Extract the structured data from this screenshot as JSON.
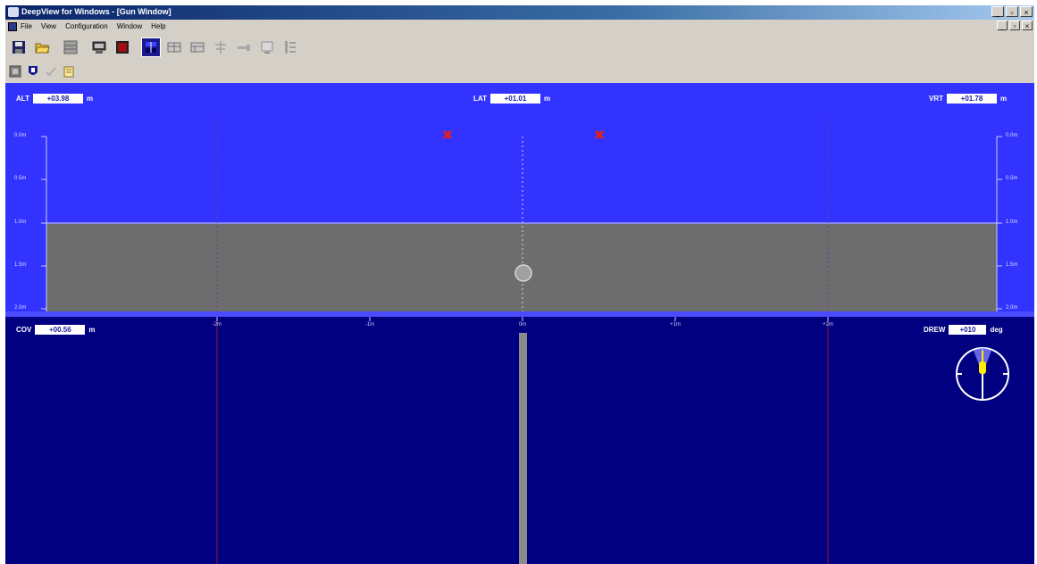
{
  "window": {
    "title": "DeepView for Windows - [Gun Window]",
    "controls": [
      "_",
      "▫",
      "×"
    ]
  },
  "menu": {
    "items": [
      "File",
      "View",
      "Configuration",
      "Window",
      "Help"
    ]
  },
  "toolbar": {
    "row1_icons": [
      "save-icon",
      "open-folder-icon",
      "grid-icon",
      "monitor-icon",
      "record-icon",
      "sonar-view-icon",
      "panel-a-icon",
      "panel-b-icon",
      "antenna-icon",
      "gun-icon",
      "map-icon",
      "list-icon"
    ],
    "row2_icons": [
      "layers-icon",
      "shield-icon",
      "check-icon",
      "notepad-icon"
    ]
  },
  "readouts": {
    "alt": {
      "label": "ALT",
      "value": "+03.98",
      "unit": "m"
    },
    "lat": {
      "label": "LAT",
      "value": "+01.01",
      "unit": "m"
    },
    "vrt": {
      "label": "VRT",
      "value": "+01.78",
      "unit": "m"
    },
    "cov": {
      "label": "COV",
      "value": "+00.56",
      "unit": "m"
    },
    "drew": {
      "label": "DREW",
      "value": "+010",
      "unit": "deg"
    }
  },
  "depth_scale": {
    "left": [
      "0.0m",
      "0.5m",
      "1.0m",
      "1.5m",
      "2.0m"
    ],
    "right": [
      "0.0m",
      "0.5m",
      "1.0m",
      "1.5m",
      "2.0m"
    ]
  },
  "lateral_scale": {
    "labels": [
      "-2m",
      "-1m",
      "0m",
      "+1m",
      "+2m"
    ]
  },
  "colors": {
    "upper_panel": "#3333ff",
    "lower_panel": "#000080",
    "seabed": "#6d6d6d",
    "target_markers": "#e02020",
    "heading_needle": "#ffee00"
  }
}
